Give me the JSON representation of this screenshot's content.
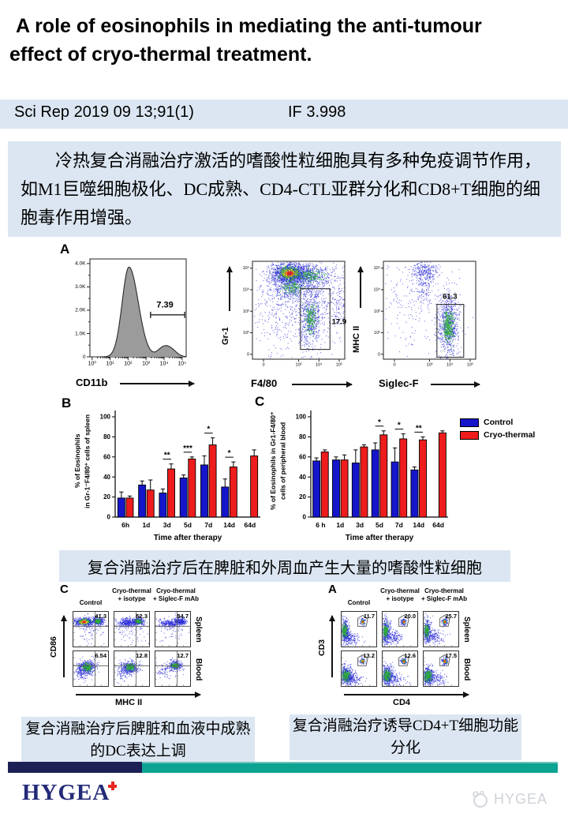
{
  "page": {
    "title_line1": "A role of eosinophils in mediating the anti-tumour",
    "title_line2": "effect of cryo-thermal treatment.",
    "citation": "Sci Rep 2019 09 13;91(1)",
    "impact_factor": "IF 3.998",
    "summary_cn": "冷热复合消融治疗激活的嗜酸性粒细胞具有多种免疫调节作用，如M1巨噬细胞极化、DC成熟、CD4-CTL亚群分化和CD8+T细胞的细胞毒作用增强。",
    "caption_middle": "复合消融治疗后在脾脏和外周血产生大量的嗜酸性粒细胞",
    "caption_bottom_left": "复合消融治疗后脾脏和血液中成熟的DC表达上调",
    "caption_bottom_right": "复合消融治疗诱导CD4+T细胞功能分化",
    "brand": "HYGEA",
    "watermark": "HYGEA"
  },
  "figureA": {
    "label": "A",
    "histogram": {
      "xlabel": "CD11b",
      "gate_value": "7.39",
      "yticks": [
        "0",
        "1.0K",
        "2.0K",
        "3.0K",
        "4.0K"
      ],
      "xticks": [
        "10⁰",
        "10¹",
        "10²",
        "10³",
        "10⁴",
        "10⁵"
      ]
    },
    "scatter_gr1": {
      "ylabel": "Gr-1",
      "xlabel": "F4/80",
      "gate_value": "17.9",
      "yticks": [
        "0",
        "10²",
        "10³",
        "10⁴",
        "10⁵"
      ],
      "xticks": [
        "0",
        "10³",
        "10⁴",
        "10⁵"
      ]
    },
    "scatter_mhc": {
      "ylabel": "MHC II",
      "xlabel": "Siglec-F",
      "gate_value": "61.3",
      "yticks": [
        "0",
        "10²",
        "10³",
        "10⁴",
        "10⁵"
      ],
      "xticks": [
        "0",
        "10³",
        "10⁴",
        "10⁵"
      ]
    }
  },
  "chart_data": [
    {
      "type": "bar",
      "panel": "B",
      "categories": [
        "6h",
        "1d",
        "3d",
        "5d",
        "7d",
        "14d",
        "64d"
      ],
      "series": [
        {
          "name": "Control",
          "color": "#1515cc",
          "values": [
            19,
            32,
            24,
            39,
            52,
            30,
            null
          ],
          "errors": [
            6,
            4,
            4,
            3,
            9,
            8,
            null
          ]
        },
        {
          "name": "Cryo-thermal",
          "color": "#ee1c1c",
          "values": [
            19,
            27,
            48,
            58,
            72,
            50,
            61
          ],
          "errors": [
            2,
            10,
            5,
            2,
            7,
            5,
            6
          ]
        }
      ],
      "significance": [
        null,
        null,
        "**",
        "***",
        "*",
        "*",
        null
      ],
      "ylabel_line1": "% of Eosinophils",
      "ylabel_line2": "in Gr-1⁻F4/80⁺ cells of spleen",
      "xlabel": "Time after therapy",
      "ylim": [
        0,
        100
      ],
      "yticks": [
        0,
        20,
        40,
        60,
        80,
        100
      ],
      "grid": false,
      "legend_position": "none"
    },
    {
      "type": "bar",
      "panel": "C",
      "categories": [
        "6 h",
        "1d",
        "3d",
        "5d",
        "7d",
        "14d",
        "64d"
      ],
      "series": [
        {
          "name": "Control",
          "color": "#1515cc",
          "values": [
            56,
            57,
            54,
            67,
            55,
            47,
            null
          ],
          "errors": [
            3,
            3,
            13,
            7,
            14,
            3,
            null
          ]
        },
        {
          "name": "Cryo-thermal",
          "color": "#ee1c1c",
          "values": [
            65,
            57,
            70,
            82,
            78,
            77,
            84
          ],
          "errors": [
            2,
            5,
            2,
            4,
            5,
            3,
            2
          ]
        }
      ],
      "significance": [
        null,
        null,
        null,
        "*",
        "*",
        "**",
        null
      ],
      "ylabel_line1": "% of Eosinophils in Gr1-F4/80⁺",
      "ylabel_line2": "cells of peripheral blood",
      "xlabel": "Time after therapy",
      "ylim": [
        0,
        100
      ],
      "yticks": [
        0,
        20,
        40,
        60,
        80,
        100
      ],
      "grid": false,
      "legend_position": "right",
      "legend": [
        "Control",
        "Cryo-thermal"
      ]
    }
  ],
  "flow_left": {
    "label": "C",
    "col_headers": [
      [
        "Control",
        ""
      ],
      [
        "Cryo-thermal",
        "+ isotype"
      ],
      [
        "Cryo-thermal",
        "+ Siglec-F mAb"
      ]
    ],
    "row_labels": [
      "Spleen",
      "Blood"
    ],
    "ylabel": "CD86",
    "xlabel": "MHC II",
    "values": [
      [
        "41.3",
        "52.3",
        "54.7"
      ],
      [
        "6.54",
        "12.8",
        "12.7"
      ]
    ]
  },
  "flow_right": {
    "label": "A",
    "col_headers": [
      [
        "Control",
        ""
      ],
      [
        "Cryo-thermal",
        "+ isotype"
      ],
      [
        "Cryo-thermal",
        "+ Siglec-F mAb"
      ]
    ],
    "row_labels": [
      "Spleen",
      "Blood"
    ],
    "ylabel": "CD3",
    "xlabel": "CD4",
    "values": [
      [
        "11.7",
        "20.0",
        "25.7"
      ],
      [
        "13.2",
        "12.6",
        "17.5"
      ]
    ]
  },
  "colors": {
    "box_bg": "#dce6f2",
    "footer_navy": "#1c2055",
    "footer_teal": "#0ca393",
    "control_blue": "#1515cc",
    "cryo_red": "#ee1c1c",
    "logo_navy": "#232a77",
    "cross_red": "#e8251f"
  }
}
